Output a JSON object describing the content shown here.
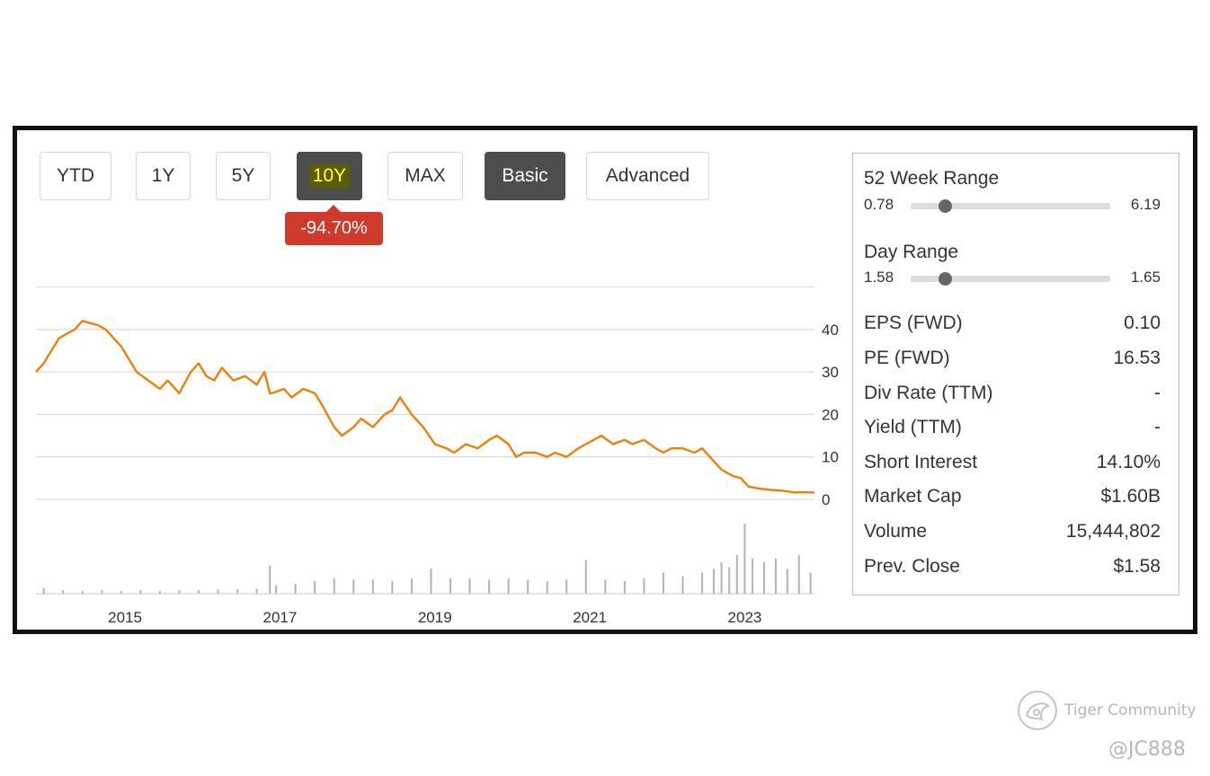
{
  "toolbar": {
    "buttons": [
      {
        "label": "YTD",
        "active": false
      },
      {
        "label": "1Y",
        "active": false
      },
      {
        "label": "5Y",
        "active": false
      },
      {
        "label": "10Y",
        "active": true
      },
      {
        "label": "MAX",
        "active": false
      },
      {
        "label": "Basic",
        "active": true
      },
      {
        "label": "Advanced",
        "active": false
      }
    ],
    "change_badge": "-94.70%"
  },
  "chart_data": {
    "type": "line",
    "xlabel": "",
    "ylabel": "",
    "x_tick_labels": [
      "2015",
      "2017",
      "2019",
      "2021",
      "2023"
    ],
    "y_tick_labels": [
      "0",
      "10",
      "20",
      "30",
      "40"
    ],
    "xlim": [
      2013.9,
      2023.95
    ],
    "ylim": [
      0,
      50
    ],
    "grid": true,
    "series": [
      {
        "kind": "price",
        "color": "#f07f09",
        "x": [
          2013.9,
          2014.0,
          2014.1,
          2014.2,
          2014.3,
          2014.4,
          2014.5,
          2014.6,
          2014.7,
          2014.8,
          2014.9,
          2015.0,
          2015.1,
          2015.2,
          2015.35,
          2015.5,
          2015.6,
          2015.75,
          2015.9,
          2016.0,
          2016.1,
          2016.2,
          2016.3,
          2016.45,
          2016.6,
          2016.75,
          2016.85,
          2016.92,
          2016.95,
          2017.1,
          2017.2,
          2017.35,
          2017.5,
          2017.6,
          2017.75,
          2017.85,
          2018.0,
          2018.1,
          2018.25,
          2018.4,
          2018.5,
          2018.6,
          2018.75,
          2018.9,
          2019.05,
          2019.2,
          2019.3,
          2019.45,
          2019.6,
          2019.75,
          2019.85,
          2020.0,
          2020.1,
          2020.2,
          2020.35,
          2020.5,
          2020.6,
          2020.75,
          2020.9,
          2021.0,
          2021.1,
          2021.2,
          2021.35,
          2021.5,
          2021.6,
          2021.75,
          2021.9,
          2022.0,
          2022.1,
          2022.25,
          2022.4,
          2022.5,
          2022.6,
          2022.75,
          2022.9,
          2023.0,
          2023.1,
          2023.25,
          2023.4,
          2023.55,
          2023.7,
          2023.8,
          2023.95
        ],
        "values": [
          30,
          32,
          35,
          38,
          39,
          40,
          42,
          41.5,
          41,
          40,
          38,
          36,
          33,
          30,
          28,
          26,
          28,
          25,
          30,
          32,
          29,
          28,
          31,
          28,
          29,
          27,
          30,
          25,
          25,
          26,
          24,
          26,
          25,
          22,
          17,
          15,
          17,
          19,
          17,
          20,
          21,
          24,
          20,
          17,
          13,
          12,
          11,
          13,
          12,
          14,
          15,
          13,
          10,
          11,
          11,
          10,
          11,
          10,
          12,
          13,
          14,
          15,
          13,
          14,
          13,
          14,
          12,
          11,
          12,
          12,
          11,
          12,
          10,
          7,
          5.5,
          5,
          3,
          2.5,
          2.2,
          2.0,
          1.6,
          1.7,
          1.6
        ]
      },
      {
        "kind": "volume",
        "color": "#b3b3b3",
        "x": [
          2014.0,
          2014.25,
          2014.5,
          2014.75,
          2015.0,
          2015.25,
          2015.5,
          2015.75,
          2016.0,
          2016.25,
          2016.5,
          2016.75,
          2016.92,
          2017.0,
          2017.25,
          2017.5,
          2017.75,
          2018.0,
          2018.25,
          2018.5,
          2018.75,
          2019.0,
          2019.25,
          2019.5,
          2019.75,
          2020.0,
          2020.25,
          2020.5,
          2020.75,
          2021.0,
          2021.25,
          2021.5,
          2021.75,
          2022.0,
          2022.25,
          2022.5,
          2022.65,
          2022.75,
          2022.85,
          2022.95,
          2023.05,
          2023.15,
          2023.3,
          2023.45,
          2023.6,
          2023.75,
          2023.9
        ],
        "values": [
          0.08,
          0.05,
          0.04,
          0.05,
          0.04,
          0.05,
          0.04,
          0.05,
          0.05,
          0.06,
          0.06,
          0.07,
          0.4,
          0.12,
          0.14,
          0.18,
          0.22,
          0.2,
          0.2,
          0.18,
          0.22,
          0.36,
          0.22,
          0.22,
          0.2,
          0.22,
          0.2,
          0.18,
          0.2,
          0.48,
          0.2,
          0.18,
          0.22,
          0.3,
          0.25,
          0.3,
          0.35,
          0.45,
          0.38,
          0.55,
          1.0,
          0.5,
          0.45,
          0.5,
          0.35,
          0.55,
          0.3
        ]
      }
    ]
  },
  "stats_panel": {
    "week52": {
      "label": "52 Week Range",
      "min": "0.78",
      "max": "6.19",
      "position": 0.17
    },
    "day": {
      "label": "Day Range",
      "min": "1.58",
      "max": "1.65",
      "position": 0.17
    },
    "rows": [
      {
        "label": "EPS (FWD)",
        "value": "0.10"
      },
      {
        "label": "PE (FWD)",
        "value": "16.53"
      },
      {
        "label": "Div Rate (TTM)",
        "value": "-"
      },
      {
        "label": "Yield (TTM)",
        "value": "-"
      },
      {
        "label": "Short Interest",
        "value": "14.10%"
      },
      {
        "label": "Market Cap",
        "value": "$1.60B"
      },
      {
        "label": "Volume",
        "value": "15,444,802"
      },
      {
        "label": "Prev. Close",
        "value": "$1.58"
      }
    ]
  },
  "watermark": {
    "brand": "Tiger Community",
    "handle": "@JC888",
    "icon": "tiger-community-logo-icon"
  }
}
